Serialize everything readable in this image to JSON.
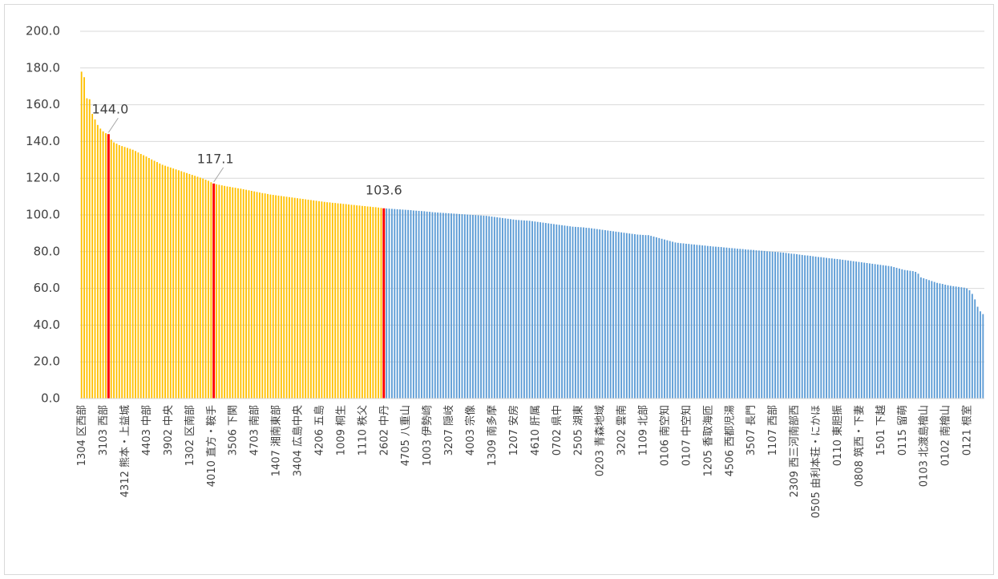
{
  "chart_data": {
    "type": "bar",
    "categories": [
      "1304 区西部",
      null,
      null,
      null,
      null,
      null,
      null,
      null,
      "3103 西部",
      null,
      null,
      null,
      null,
      null,
      null,
      null,
      "4312 熊本・上益城",
      null,
      null,
      null,
      null,
      null,
      null,
      null,
      "4403 中部",
      null,
      null,
      null,
      null,
      null,
      null,
      null,
      "3902 中央",
      null,
      null,
      null,
      null,
      null,
      null,
      null,
      "1302 区南部",
      null,
      null,
      null,
      null,
      null,
      null,
      null,
      "4010 直方・鞍手",
      null,
      null,
      null,
      null,
      null,
      null,
      null,
      "3506 下関",
      null,
      null,
      null,
      null,
      null,
      null,
      null,
      "4703 南部",
      null,
      null,
      null,
      null,
      null,
      null,
      null,
      "1407 湘南東部",
      null,
      null,
      null,
      null,
      null,
      null,
      null,
      "3404 広島中央",
      null,
      null,
      null,
      null,
      null,
      null,
      null,
      "4206 五島",
      null,
      null,
      null,
      null,
      null,
      null,
      null,
      "1009 桐生",
      null,
      null,
      null,
      null,
      null,
      null,
      null,
      "1110 秩父",
      null,
      null,
      null,
      null,
      null,
      null,
      null,
      "2602 中丹",
      null,
      null,
      null,
      null,
      null,
      null,
      null,
      "4705 八重山",
      null,
      null,
      null,
      null,
      null,
      null,
      null,
      "1003 伊勢崎",
      null,
      null,
      null,
      null,
      null,
      null,
      null,
      "3207 隠岐",
      null,
      null,
      null,
      null,
      null,
      null,
      null,
      "4003 宗像",
      null,
      null,
      null,
      null,
      null,
      null,
      null,
      "1309 南多摩",
      null,
      null,
      null,
      null,
      null,
      null,
      null,
      "1207 安房",
      null,
      null,
      null,
      null,
      null,
      null,
      null,
      "4610 肝属",
      null,
      null,
      null,
      null,
      null,
      null,
      null,
      "0702 県中",
      null,
      null,
      null,
      null,
      null,
      null,
      null,
      "2505 湖東",
      null,
      null,
      null,
      null,
      null,
      null,
      null,
      "0203 青森地域",
      null,
      null,
      null,
      null,
      null,
      null,
      null,
      "3202 雲南",
      null,
      null,
      null,
      null,
      null,
      null,
      null,
      "1109 北部",
      null,
      null,
      null,
      null,
      null,
      null,
      null,
      "0106 南空知",
      null,
      null,
      null,
      null,
      null,
      null,
      null,
      "0107 中空知",
      null,
      null,
      null,
      null,
      null,
      null,
      null,
      "1205 香取海匝",
      null,
      null,
      null,
      null,
      null,
      null,
      null,
      "4506 西都児湯",
      null,
      null,
      null,
      null,
      null,
      null,
      null,
      "3507 長門",
      null,
      null,
      null,
      null,
      null,
      null,
      null,
      "1107 西部",
      null,
      null,
      null,
      null,
      null,
      null,
      null,
      "2309 西三河南部西",
      null,
      null,
      null,
      null,
      null,
      null,
      null,
      "0505 由利本荘・にかほ",
      null,
      null,
      null,
      null,
      null,
      null,
      null,
      "0110 東胆振",
      null,
      null,
      null,
      null,
      null,
      null,
      null,
      "0808 筑西・下妻",
      null,
      null,
      null,
      null,
      null,
      null,
      null,
      "1501 下越",
      null,
      null,
      null,
      null,
      null,
      null,
      null,
      "0115 留萌",
      null,
      null,
      null,
      null,
      null,
      null,
      null,
      "0103 北渡島檜山",
      null,
      null,
      null,
      null,
      null,
      null,
      null,
      "0102 南檜山",
      null,
      null,
      null,
      null,
      null,
      null,
      null,
      "0121 根室",
      null,
      null,
      null,
      null,
      null,
      null
    ],
    "values": [
      178.0,
      175.0,
      163.5,
      163.0,
      155.0,
      152.0,
      149.0,
      147.0,
      145.5,
      144.5,
      144.0,
      141.0,
      139.5,
      138.8,
      138.0,
      137.5,
      137.0,
      136.5,
      136.0,
      135.5,
      134.8,
      134.0,
      133.2,
      132.5,
      131.8,
      131.0,
      130.2,
      129.5,
      128.8,
      128.0,
      127.3,
      126.8,
      126.3,
      125.8,
      125.3,
      124.8,
      124.3,
      123.8,
      123.3,
      122.8,
      122.3,
      121.8,
      121.3,
      120.8,
      120.3,
      119.8,
      119.2,
      118.6,
      117.8,
      117.1,
      116.7,
      116.4,
      116.1,
      115.8,
      115.5,
      115.3,
      115.0,
      114.8,
      114.5,
      114.3,
      114.0,
      113.7,
      113.4,
      113.1,
      112.8,
      112.5,
      112.2,
      111.9,
      111.7,
      111.4,
      111.1,
      110.9,
      110.7,
      110.5,
      110.3,
      110.1,
      109.9,
      109.7,
      109.5,
      109.3,
      109.1,
      108.9,
      108.7,
      108.5,
      108.3,
      108.1,
      107.9,
      107.7,
      107.5,
      107.3,
      107.1,
      106.9,
      106.8,
      106.6,
      106.5,
      106.3,
      106.2,
      106.0,
      105.9,
      105.7,
      105.5,
      105.4,
      105.2,
      105.1,
      104.9,
      104.8,
      104.6,
      104.5,
      104.3,
      104.2,
      104.0,
      103.8,
      103.6,
      103.5,
      103.4,
      103.3,
      103.2,
      103.1,
      103.0,
      102.9,
      102.8,
      102.7,
      102.6,
      102.4,
      102.3,
      102.2,
      102.1,
      102.0,
      101.8,
      101.7,
      101.5,
      101.4,
      101.3,
      101.2,
      101.1,
      101.0,
      100.9,
      100.8,
      100.7,
      100.6,
      100.5,
      100.4,
      100.3,
      100.2,
      100.1,
      100.0,
      99.9,
      99.8,
      99.7,
      99.6,
      99.5,
      99.3,
      99.1,
      98.9,
      98.7,
      98.5,
      98.3,
      98.1,
      97.9,
      97.7,
      97.5,
      97.3,
      97.2,
      97.1,
      97.0,
      96.9,
      96.8,
      96.6,
      96.4,
      96.2,
      96.0,
      95.8,
      95.6,
      95.4,
      95.2,
      95.0,
      94.8,
      94.6,
      94.4,
      94.2,
      94.0,
      93.8,
      93.6,
      93.5,
      93.4,
      93.3,
      93.2,
      93.0,
      92.9,
      92.7,
      92.5,
      92.3,
      92.1,
      91.9,
      91.7,
      91.5,
      91.3,
      91.1,
      90.9,
      90.7,
      90.5,
      90.3,
      90.1,
      89.9,
      89.7,
      89.5,
      89.3,
      89.2,
      89.1,
      89.0,
      89.0,
      88.6,
      88.2,
      87.8,
      87.4,
      87.0,
      86.6,
      86.2,
      85.8,
      85.4,
      85.0,
      84.8,
      84.6,
      84.5,
      84.3,
      84.2,
      84.0,
      83.9,
      83.7,
      83.6,
      83.4,
      83.3,
      83.1,
      83.0,
      82.8,
      82.7,
      82.6,
      82.5,
      82.3,
      82.2,
      82.0,
      81.9,
      81.8,
      81.6,
      81.5,
      81.4,
      81.2,
      81.1,
      81.0,
      80.9,
      80.7,
      80.6,
      80.5,
      80.4,
      80.2,
      80.1,
      80.0,
      79.9,
      79.8,
      79.6,
      79.5,
      79.3,
      79.1,
      78.9,
      78.8,
      78.6,
      78.4,
      78.2,
      78.0,
      77.9,
      77.7,
      77.5,
      77.3,
      77.1,
      77.0,
      76.8,
      76.6,
      76.4,
      76.3,
      76.1,
      76.0,
      75.8,
      75.6,
      75.4,
      75.2,
      75.0,
      74.8,
      74.6,
      74.4,
      74.2,
      74.0,
      73.8,
      73.6,
      73.4,
      73.2,
      73.0,
      72.8,
      72.6,
      72.4,
      72.2,
      72.0,
      71.6,
      71.2,
      70.8,
      70.4,
      70.0,
      69.8,
      69.6,
      69.4,
      69.0,
      68.0,
      66.0,
      65.5,
      65.0,
      64.5,
      64.0,
      63.5,
      63.0,
      62.7,
      62.4,
      62.0,
      61.7,
      61.4,
      61.2,
      61.0,
      60.8,
      60.6,
      60.4,
      60.0,
      59.0,
      57.0,
      54.0,
      50.0,
      47.5,
      46.0
    ],
    "value_labels": {
      "10": "144.0",
      "49": "117.1",
      "112": "103.6"
    },
    "colors": [
      "#ffc000",
      "#5b9bd5"
    ],
    "highlight_color": "#ff0000",
    "ylim": [
      0,
      200
    ],
    "yticks": [
      {
        "value": 0,
        "label": "0.0"
      },
      {
        "value": 20,
        "label": "20.0"
      },
      {
        "value": 40,
        "label": "40.0"
      },
      {
        "value": 60,
        "label": "60.0"
      },
      {
        "value": 80,
        "label": "80.0"
      },
      {
        "value": 100,
        "label": "100.0"
      },
      {
        "value": 120,
        "label": "120.0"
      },
      {
        "value": 140,
        "label": "140.0"
      },
      {
        "value": 160,
        "label": "160.0"
      },
      {
        "value": 180,
        "label": "180.0"
      },
      {
        "value": 200,
        "label": "200.0"
      }
    ],
    "grid": true
  }
}
